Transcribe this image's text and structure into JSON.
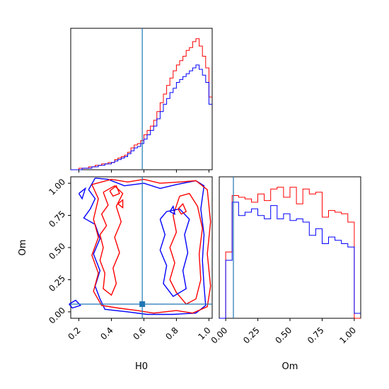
{
  "colors": {
    "series_a": "#ff0000",
    "series_b": "#0000ff",
    "truth": "#1f77b4",
    "axes": "#000000"
  },
  "chart_data": {
    "type": "corner",
    "parameters": [
      "H0",
      "Om"
    ],
    "axis_labels": {
      "x_bottom_left": "H0",
      "x_bottom_right": "Om",
      "y_left": "Om"
    },
    "truth": {
      "H0": 0.59,
      "Om": 0.06
    },
    "panels": [
      {
        "id": "hist-H0",
        "type": "histogram",
        "parameter": "H0",
        "xlim": [
          0.15,
          1.02
        ],
        "x_ticks": [
          0.2,
          0.4,
          0.6,
          0.8,
          1.0
        ],
        "bin_edges": [
          0.1,
          0.12,
          0.14,
          0.16,
          0.18,
          0.2,
          0.22,
          0.24,
          0.26,
          0.28,
          0.3,
          0.32,
          0.34,
          0.36,
          0.38,
          0.4,
          0.42,
          0.44,
          0.46,
          0.48,
          0.5,
          0.52,
          0.54,
          0.56,
          0.58,
          0.6,
          0.62,
          0.64,
          0.66,
          0.68,
          0.7,
          0.72,
          0.74,
          0.76,
          0.78,
          0.8,
          0.82,
          0.84,
          0.86,
          0.88,
          0.9,
          0.92,
          0.94,
          0.96,
          0.98,
          1.0,
          1.02
        ],
        "series": [
          {
            "color": "red",
            "values": [
              0,
              0,
              0,
              0,
              0,
              1,
              1,
              1,
              2,
              2,
              3,
              3,
              4,
              4,
              5,
              5,
              7,
              8,
              9,
              10,
              12,
              15,
              17,
              18,
              20,
              24,
              27,
              30,
              34,
              40,
              46,
              52,
              58,
              63,
              68,
              72,
              75,
              78,
              82,
              84,
              88,
              90,
              85,
              78,
              70,
              50
            ]
          },
          {
            "color": "blue",
            "values": [
              0,
              0,
              0,
              0,
              0,
              0,
              1,
              1,
              1,
              2,
              2,
              3,
              3,
              4,
              4,
              5,
              6,
              7,
              8,
              9,
              11,
              13,
              15,
              16,
              18,
              21,
              24,
              27,
              30,
              35,
              40,
              45,
              49,
              53,
              56,
              60,
              62,
              64,
              66,
              68,
              70,
              72,
              69,
              65,
              60,
              45
            ]
          }
        ]
      },
      {
        "id": "contour-H0-Om",
        "type": "contour",
        "x_parameter": "H0",
        "y_parameter": "Om",
        "xlim": [
          0.15,
          1.02
        ],
        "ylim": [
          -0.05,
          1.05
        ],
        "x_ticks": [
          0.2,
          0.4,
          0.6,
          0.8,
          1.0
        ],
        "y_ticks": [
          0.0,
          0.25,
          0.5,
          0.75,
          1.0
        ]
      },
      {
        "id": "hist-Om",
        "type": "histogram",
        "parameter": "Om",
        "xlim": [
          -0.05,
          1.05
        ],
        "x_ticks": [
          0.0,
          0.25,
          0.5,
          0.75,
          1.0
        ],
        "bin_edges": [
          -0.05,
          0.0,
          0.05,
          0.1,
          0.15,
          0.2,
          0.25,
          0.3,
          0.35,
          0.4,
          0.45,
          0.5,
          0.55,
          0.6,
          0.65,
          0.7,
          0.75,
          0.8,
          0.85,
          0.9,
          0.95,
          1.0,
          1.05
        ],
        "series": [
          {
            "color": "red",
            "values": [
              0,
              40,
              74,
              73,
              72,
              70,
              75,
              71,
              78,
              79,
              73,
              79,
              69,
              78,
              75,
              76,
              61,
              65,
              64,
              63,
              58,
              0
            ]
          },
          {
            "color": "blue",
            "values": [
              0,
              35,
              70,
              62,
              64,
              66,
              62,
              60,
              68,
              60,
              63,
              59,
              60,
              58,
              50,
              54,
              45,
              49,
              47,
              45,
              43,
              3
            ]
          }
        ]
      }
    ]
  }
}
